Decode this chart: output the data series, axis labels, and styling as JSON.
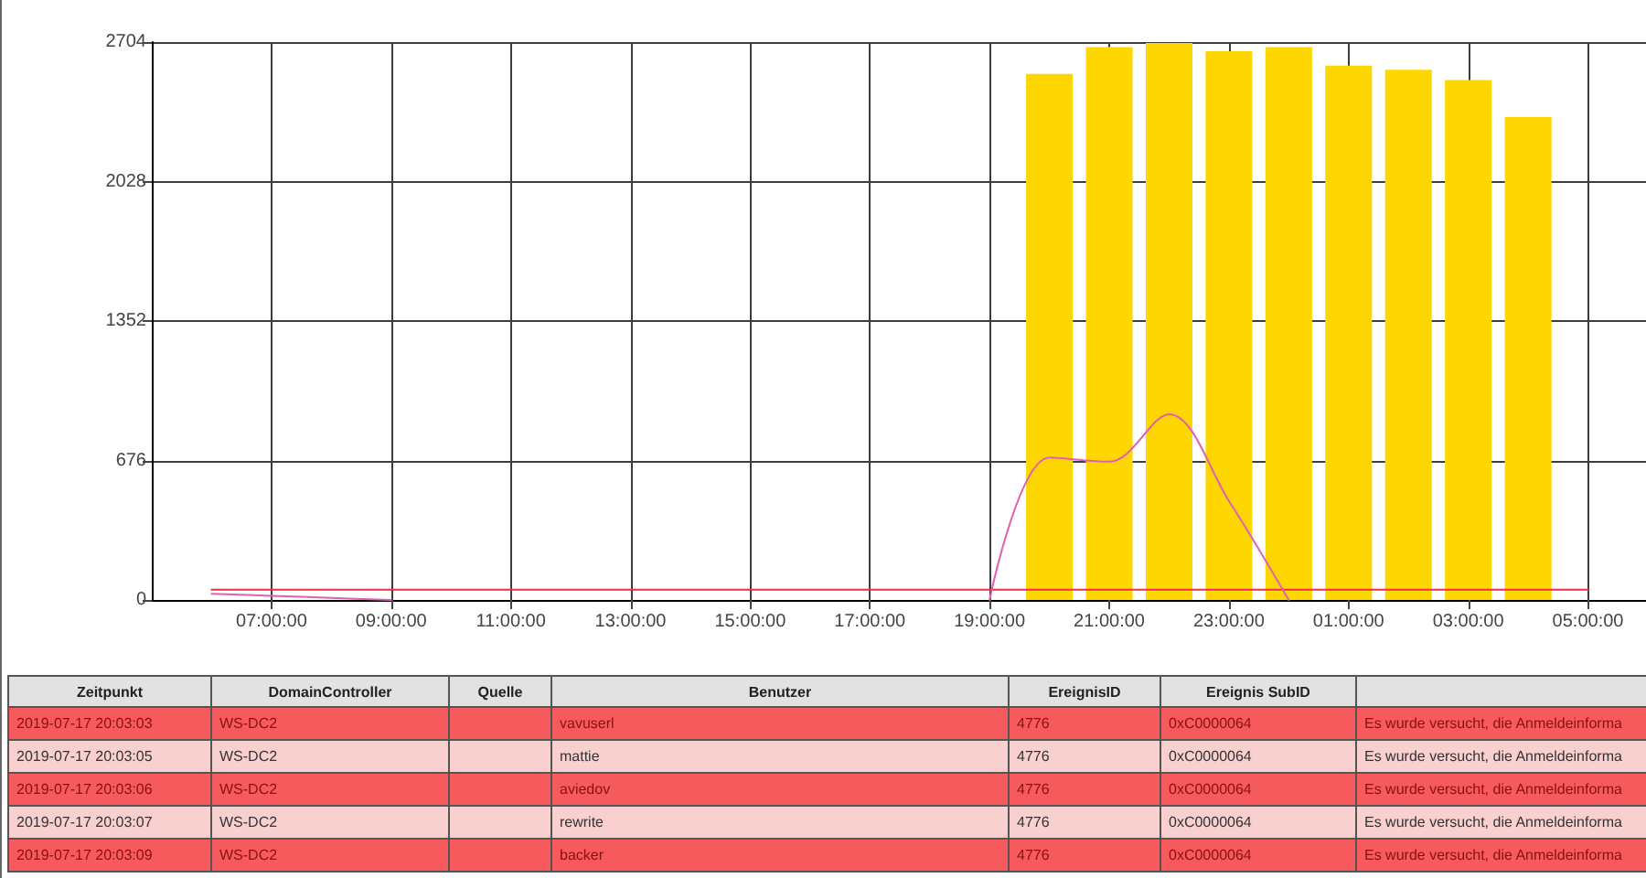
{
  "chart_data": [
    {
      "type": "bar",
      "xlim": [
        "2019-07-17T05:00",
        "2019-07-18T06:00"
      ],
      "xticks": [
        {
          "value": "2019-07-17T07:00",
          "label": "07:00:00"
        },
        {
          "value": "2019-07-17T09:00",
          "label": "09:00:00"
        },
        {
          "value": "2019-07-17T11:00",
          "label": "11:00:00"
        },
        {
          "value": "2019-07-17T13:00",
          "label": "13:00:00"
        },
        {
          "value": "2019-07-17T15:00",
          "label": "15:00:00"
        },
        {
          "value": "2019-07-17T17:00",
          "label": "17:00:00"
        },
        {
          "value": "2019-07-17T19:00",
          "label": "19:00:00"
        },
        {
          "value": "2019-07-17T21:00",
          "label": "21:00:00"
        },
        {
          "value": "2019-07-17T23:00",
          "label": "23:00:00"
        },
        {
          "value": "2019-07-18T01:00",
          "label": "01:00:00"
        },
        {
          "value": "2019-07-18T03:00",
          "label": "03:00:00"
        },
        {
          "value": "2019-07-18T05:00",
          "label": "05:00:00"
        }
      ],
      "ylim": [
        0,
        2704
      ],
      "yticks": [
        0,
        676,
        1352,
        2028,
        2704
      ],
      "grid": true,
      "series": [
        {
          "type": "bar",
          "color": "#ffd700",
          "x": [
            "2019-07-17T20:00",
            "2019-07-17T21:00",
            "2019-07-17T22:00",
            "2019-07-17T23:00",
            "2019-07-18T00:00",
            "2019-07-18T01:00",
            "2019-07-18T02:00",
            "2019-07-18T03:00",
            "2019-07-18T04:00"
          ],
          "values": [
            2550,
            2680,
            2700,
            2660,
            2680,
            2590,
            2570,
            2520,
            2340
          ]
        },
        {
          "type": "line",
          "color": "#e8304a",
          "x": [
            "2019-07-17T06:00",
            "2019-07-18T05:00"
          ],
          "values": [
            50,
            50
          ]
        },
        {
          "type": "line",
          "color": "#e060b0",
          "x": [
            "2019-07-17T06:00",
            "2019-07-17T07:00",
            "2019-07-17T08:00",
            "2019-07-17T09:00",
            "2019-07-17T10:00",
            "2019-07-17T11:00",
            "2019-07-17T12:00",
            "2019-07-17T13:00",
            "2019-07-17T14:00",
            "2019-07-17T15:00",
            "2019-07-17T16:00",
            "2019-07-17T17:00",
            "2019-07-17T18:00",
            "2019-07-17T19:00",
            "2019-07-17T20:00",
            "2019-07-17T21:00",
            "2019-07-17T22:00",
            "2019-07-17T23:00",
            "2019-07-18T00:00"
          ],
          "values": [
            30,
            20,
            10,
            0,
            null,
            null,
            null,
            null,
            null,
            null,
            null,
            null,
            null,
            0,
            690,
            670,
            900,
            480,
            0
          ]
        }
      ]
    },
    {
      "type": "other",
      "categories": [
        "Zeitpunkt",
        "DomainController",
        "Quelle",
        "Benutzer",
        "EreignisID",
        "Ereignis SubID",
        null
      ],
      "annotations": [
        "2019-07-17 20:03:03",
        "WS-DC2",
        null,
        "vavuserl",
        "4776",
        "0xC0000064",
        "Es wurde versucht, die Anmeldeinforma",
        "2019-07-17 20:03:05",
        "WS-DC2",
        null,
        "mattie",
        "4776",
        "0xC0000064",
        "Es wurde versucht, die Anmeldeinforma",
        "2019-07-17 20:03:06",
        "WS-DC2",
        null,
        "aviedov",
        "4776",
        "0xC0000064",
        "Es wurde versucht, die Anmeldeinforma",
        "2019-07-17 20:03:07",
        "WS-DC2",
        null,
        "rewrite",
        "4776",
        "0xC0000064",
        "Es wurde versucht, die Anmeldeinforma",
        "2019-07-17 20:03:09",
        "WS-DC2",
        null,
        "backer",
        "4776",
        "0xC0000064",
        "Es wurde versucht, die Anmeldeinforma"
      ]
    }
  ]
}
